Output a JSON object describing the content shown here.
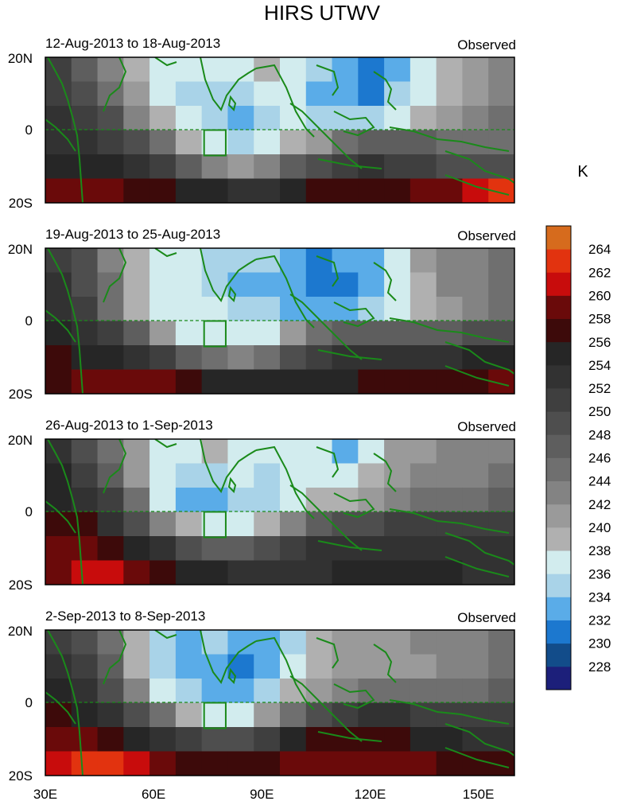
{
  "chart_data": {
    "type": "heatmap",
    "title": "HIRS UTWV",
    "units_label": "K",
    "x_ticks": [
      {
        "value": 30,
        "label": "30E"
      },
      {
        "value": 60,
        "label": "60E"
      },
      {
        "value": 90,
        "label": "90E"
      },
      {
        "value": 120,
        "label": "120E"
      },
      {
        "value": 150,
        "label": "150E"
      }
    ],
    "y_ticks": [
      {
        "value": 20,
        "label": "20N"
      },
      {
        "value": 0,
        "label": "0"
      },
      {
        "value": -20,
        "label": "20S"
      }
    ],
    "xlim": [
      30,
      160
    ],
    "ylim": [
      -20,
      20
    ],
    "box_region": {
      "lon": [
        74,
        80
      ],
      "lat": [
        -7,
        0
      ]
    },
    "colorbar": {
      "levels": [
        228,
        230,
        232,
        234,
        236,
        238,
        240,
        242,
        244,
        246,
        248,
        250,
        252,
        254,
        256,
        258,
        260,
        262,
        264
      ],
      "colors": [
        "#1c1f7a",
        "#124c8a",
        "#1c78cf",
        "#5aace8",
        "#a9d3e8",
        "#d2ecee",
        "#b0b0b0",
        "#9a9a9a",
        "#838383",
        "#6f6f6f",
        "#5e5e5e",
        "#4e4e4e",
        "#3f3f3f",
        "#323232",
        "#262626",
        "#3d0a0a",
        "#6a0a0a",
        "#c80c0c",
        "#e2330f",
        "#d66b1d"
      ]
    },
    "panels": [
      {
        "period": "12-Aug-2013 to 18-Aug-2013",
        "tag": "Observed",
        "grid": [
          [
            250,
            247,
            242,
            238,
            236,
            236,
            237,
            237,
            238,
            236,
            234,
            232,
            230,
            233,
            236,
            238,
            240,
            242
          ],
          [
            251,
            249,
            245,
            240,
            237,
            235,
            234,
            235,
            236,
            236,
            233,
            232,
            231,
            234,
            236,
            238,
            241,
            243
          ],
          [
            252,
            251,
            248,
            243,
            239,
            236,
            234,
            233,
            235,
            236,
            235,
            234,
            235,
            237,
            238,
            240,
            242,
            244
          ],
          [
            253,
            252,
            251,
            248,
            244,
            239,
            236,
            235,
            236,
            238,
            240,
            244,
            246,
            247,
            246,
            245,
            244,
            245
          ],
          [
            255,
            255,
            254,
            252,
            250,
            246,
            242,
            240,
            242,
            246,
            249,
            251,
            252,
            251,
            250,
            249,
            248,
            248
          ],
          [
            258,
            259,
            258,
            257,
            256,
            255,
            254,
            252,
            253,
            255,
            256,
            256,
            256,
            257,
            258,
            259,
            260,
            262
          ]
        ]
      },
      {
        "period": "19-Aug-2013 to 25-Aug-2013",
        "tag": "Observed",
        "grid": [
          [
            251,
            248,
            243,
            239,
            237,
            236,
            235,
            235,
            234,
            232,
            231,
            232,
            233,
            236,
            240,
            242,
            243,
            244
          ],
          [
            252,
            249,
            244,
            239,
            237,
            236,
            234,
            233,
            233,
            232,
            231,
            231,
            233,
            236,
            239,
            242,
            243,
            245
          ],
          [
            253,
            250,
            245,
            239,
            236,
            236,
            236,
            235,
            234,
            233,
            233,
            233,
            234,
            237,
            239,
            241,
            243,
            245
          ],
          [
            254,
            252,
            250,
            246,
            241,
            237,
            236,
            236,
            237,
            240,
            244,
            246,
            247,
            246,
            246,
            247,
            248,
            248
          ],
          [
            256,
            255,
            254,
            252,
            250,
            247,
            244,
            243,
            245,
            249,
            251,
            252,
            253,
            253,
            253,
            253,
            254,
            254
          ],
          [
            257,
            258,
            258,
            259,
            258,
            256,
            255,
            254,
            254,
            255,
            255,
            255,
            256,
            256,
            257,
            257,
            257,
            258
          ]
        ]
      },
      {
        "period": "26-Aug-2013 to 1-Sep-2013",
        "tag": "Observed",
        "grid": [
          [
            252,
            249,
            244,
            240,
            237,
            237,
            238,
            237,
            236,
            236,
            236,
            233,
            237,
            240,
            241,
            242,
            242,
            243
          ],
          [
            254,
            251,
            247,
            241,
            236,
            234,
            235,
            236,
            235,
            236,
            237,
            236,
            238,
            241,
            242,
            242,
            243,
            244
          ],
          [
            255,
            253,
            250,
            244,
            237,
            233,
            232,
            234,
            234,
            236,
            238,
            238,
            240,
            243,
            244,
            244,
            245,
            246
          ],
          [
            257,
            256,
            253,
            249,
            243,
            238,
            236,
            237,
            239,
            243,
            246,
            248,
            249,
            250,
            250,
            250,
            250,
            251
          ],
          [
            258,
            258,
            257,
            255,
            252,
            249,
            247,
            246,
            248,
            251,
            252,
            253,
            253,
            253,
            253,
            253,
            252,
            252
          ],
          [
            259,
            260,
            260,
            259,
            257,
            255,
            254,
            253,
            253,
            253,
            253,
            254,
            254,
            254,
            254,
            254,
            253,
            253
          ]
        ]
      },
      {
        "period": "2-Sep-2013 to 8-Sep-2013",
        "tag": "Observed",
        "grid": [
          [
            251,
            248,
            244,
            238,
            235,
            233,
            234,
            232,
            233,
            235,
            238,
            240,
            240,
            241,
            242,
            243,
            243,
            244
          ],
          [
            253,
            250,
            246,
            239,
            234,
            232,
            232,
            231,
            233,
            236,
            239,
            241,
            240,
            240,
            241,
            242,
            243,
            244
          ],
          [
            254,
            252,
            249,
            243,
            237,
            234,
            233,
            233,
            235,
            238,
            241,
            243,
            244,
            244,
            244,
            244,
            245,
            246
          ],
          [
            256,
            255,
            253,
            249,
            244,
            239,
            236,
            237,
            240,
            245,
            249,
            251,
            252,
            252,
            251,
            250,
            250,
            250
          ],
          [
            258,
            258,
            257,
            255,
            252,
            250,
            249,
            249,
            251,
            254,
            256,
            257,
            257,
            256,
            255,
            254,
            253,
            253
          ],
          [
            260,
            262,
            263,
            261,
            259,
            257,
            256,
            256,
            257,
            258,
            259,
            259,
            259,
            259,
            258,
            257,
            256,
            256
          ]
        ]
      }
    ]
  }
}
